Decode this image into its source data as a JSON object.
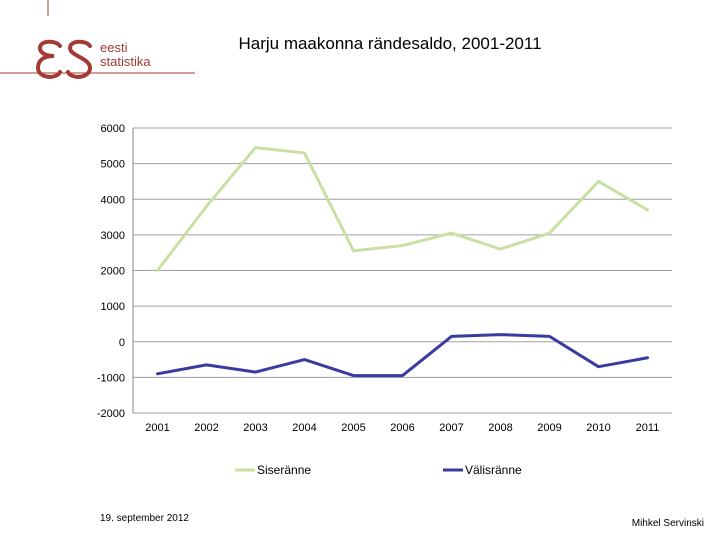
{
  "logo": {
    "line1": "eesti",
    "line2": "statistika",
    "brand_color": "#a23b36"
  },
  "title": "Harju maakonna rändesaldo, 2001-2011",
  "footer": {
    "date": "19. september 2012",
    "author": "Mihkel Servinski"
  },
  "chart_data": {
    "type": "line",
    "title": "Harju maakonna rändesaldo, 2001-2011",
    "x": [
      "2001",
      "2002",
      "2003",
      "2004",
      "2005",
      "2006",
      "2007",
      "2008",
      "2009",
      "2010",
      "2011"
    ],
    "ylim": [
      -2000,
      6000
    ],
    "yticks": [
      6000,
      5000,
      4000,
      3000,
      2000,
      1000,
      0,
      -1000,
      -2000
    ],
    "grid": true,
    "legend_position": "bottom",
    "series": [
      {
        "name": "Siseränne",
        "color": "#c8e0a4",
        "values": [
          2000,
          3800,
          5450,
          5300,
          2550,
          2700,
          3050,
          2600,
          3050,
          4500,
          3700
        ]
      },
      {
        "name": "Välisränne",
        "color": "#3a3aa0",
        "values": [
          -900,
          -650,
          -850,
          -500,
          -950,
          -950,
          150,
          200,
          150,
          -700,
          -450
        ]
      }
    ]
  }
}
